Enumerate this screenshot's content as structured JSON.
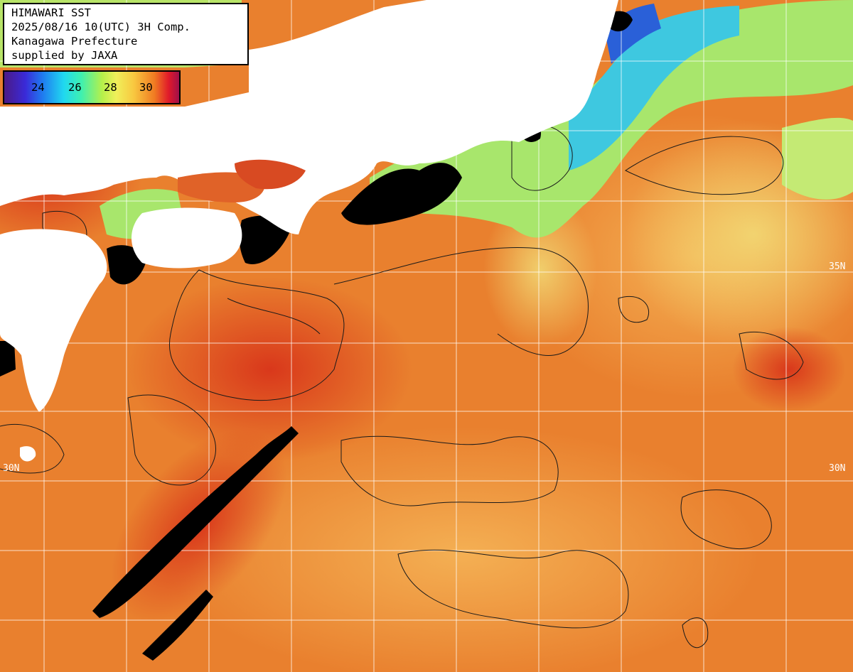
{
  "title": {
    "line1": "HIMAWARI SST",
    "line2": "2025/08/16 10(UTC) 3H Comp.",
    "line3": "Kanagawa Prefecture",
    "line4": "supplied by JAXA"
  },
  "colorbar": {
    "ticks": [
      "24",
      "26",
      "28",
      "30"
    ],
    "colors": [
      "#4b1a86",
      "#1f7cf0",
      "#20d8f0",
      "#b6f04a",
      "#f0f05a",
      "#f07a22",
      "#e01a2a"
    ]
  },
  "latitude_labels": {
    "left_30": "30N",
    "right_30": "30N",
    "right_upper": "35N"
  },
  "colors": {
    "land": "#ffffff",
    "cloud": "#000000",
    "warm_sea": "#e8782a",
    "hot_sea": "#d8401e",
    "cool_sea": "#9ae86a",
    "cold_sea": "#28a0e8",
    "grid": "#ffffff"
  }
}
